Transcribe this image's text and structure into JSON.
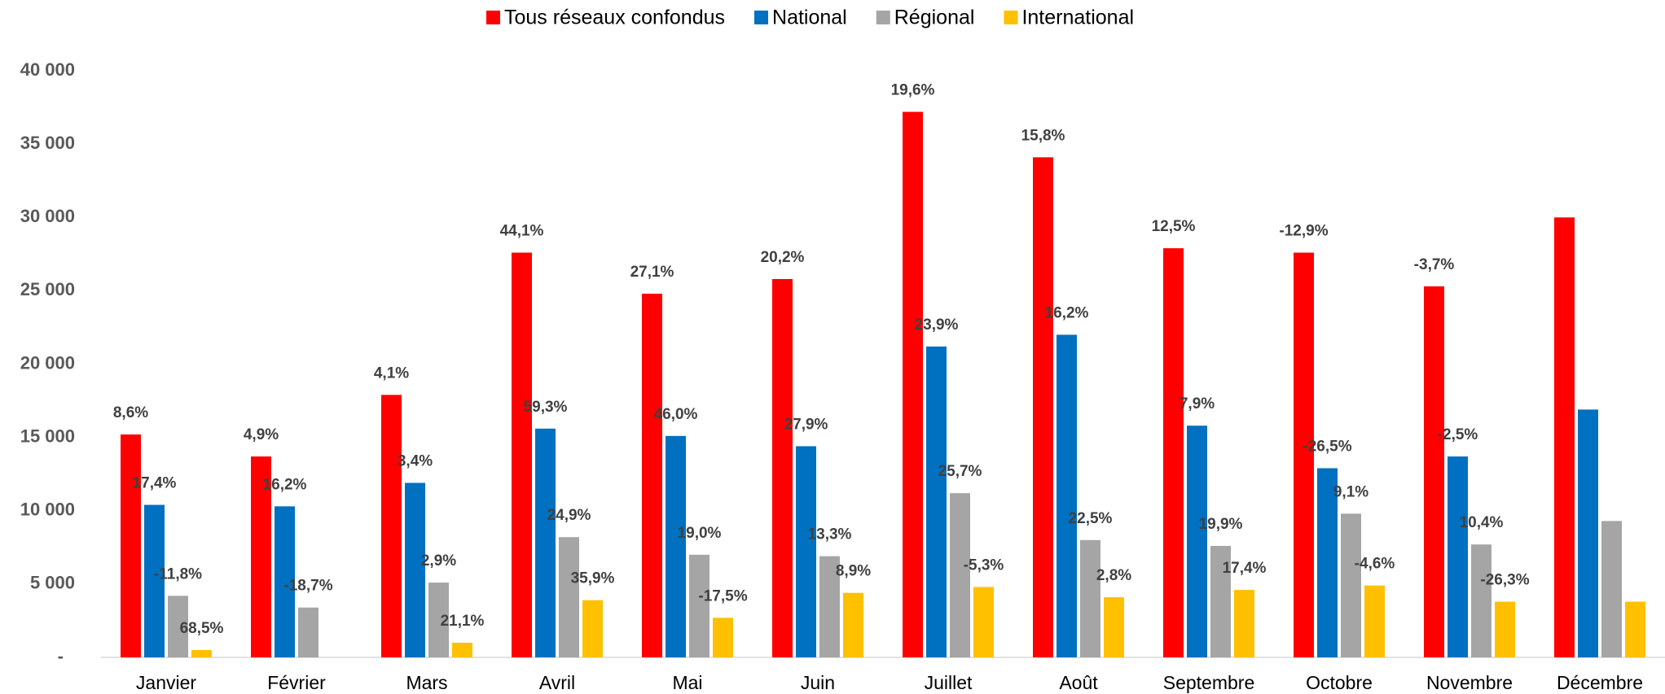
{
  "chart_data": {
    "type": "bar",
    "categories": [
      "Janvier",
      "Février",
      "Mars",
      "Avril",
      "Mai",
      "Juin",
      "Juillet",
      "Août",
      "Septembre",
      "Octobre",
      "Novembre",
      "Décembre"
    ],
    "series": [
      {
        "name": "Tous réseaux confondus",
        "color": "#ff0000",
        "values": [
          15200,
          13700,
          17900,
          27600,
          24800,
          25800,
          37200,
          34100,
          27900,
          27600,
          25300,
          30000
        ],
        "value_labels": [
          "8,6%",
          "4,9%",
          "4,1%",
          "44,1%",
          "27,1%",
          "20,2%",
          "19,6%",
          "15,8%",
          "12,5%",
          "-12,9%",
          "-3,7%",
          null
        ]
      },
      {
        "name": "National",
        "color": "#0070c0",
        "values": [
          10400,
          10300,
          11900,
          15600,
          15100,
          14400,
          21200,
          22000,
          15800,
          12900,
          13700,
          16900
        ],
        "value_labels": [
          "17,4%",
          "16,2%",
          "3,4%",
          "59,3%",
          "46,0%",
          "27,9%",
          "23,9%",
          "16,2%",
          "7,9%",
          "-26,5%",
          "-2,5%",
          null
        ]
      },
      {
        "name": "Régional",
        "color": "#a5a5a5",
        "values": [
          4200,
          3400,
          5100,
          8200,
          7000,
          6900,
          11200,
          8000,
          7600,
          9800,
          7700,
          9300
        ],
        "value_labels": [
          "-11,8%",
          "-18,7%",
          "2,9%",
          "24,9%",
          "19,0%",
          "13,3%",
          "25,7%",
          "22,5%",
          "19,9%",
          "9,1%",
          "10,4%",
          null
        ]
      },
      {
        "name": "International",
        "color": "#ffc000",
        "values": [
          500,
          null,
          1000,
          3900,
          2700,
          4400,
          4800,
          4100,
          4600,
          4900,
          3800,
          3800
        ],
        "value_labels": [
          "68,5%",
          null,
          "21,1%",
          "35,9%",
          "-17,5%",
          "8,9%",
          "-5,3%",
          "2,8%",
          "17,4%",
          "-4,6%",
          "-26,3%",
          null
        ]
      }
    ],
    "ylim": [
      0,
      40000
    ],
    "yticks": [
      {
        "value": 0,
        "label": "-"
      },
      {
        "value": 5000,
        "label": "5 000"
      },
      {
        "value": 10000,
        "label": "10 000"
      },
      {
        "value": 15000,
        "label": "15 000"
      },
      {
        "value": 20000,
        "label": "20 000"
      },
      {
        "value": 25000,
        "label": "25 000"
      },
      {
        "value": 30000,
        "label": "30 000"
      },
      {
        "value": 35000,
        "label": "35 000"
      },
      {
        "value": 40000,
        "label": "40 000"
      }
    ],
    "legend": "top",
    "grid": false
  }
}
